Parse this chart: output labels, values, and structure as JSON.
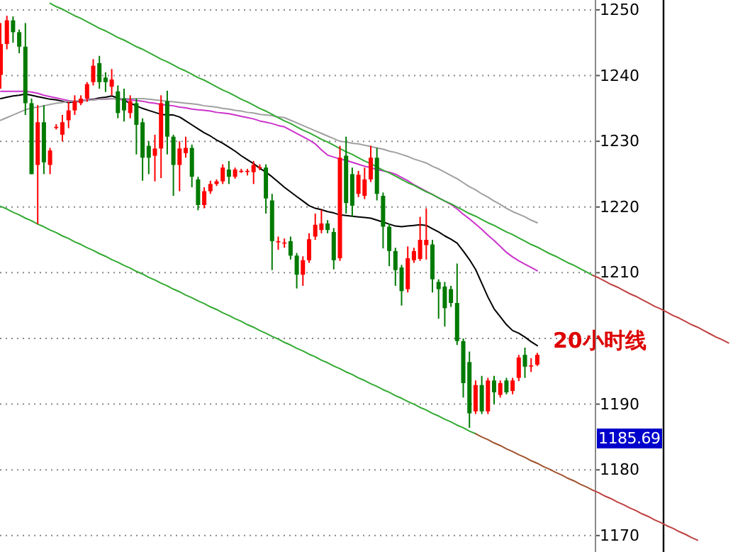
{
  "chart_data": {
    "type": "candlestick",
    "categories": [
      null,
      null,
      null,
      null,
      null,
      null,
      null,
      null,
      null,
      null,
      null,
      null,
      null,
      null,
      null,
      null,
      null,
      null,
      null,
      null,
      null,
      null,
      null,
      null,
      null,
      null,
      null,
      null,
      null,
      null,
      null,
      null,
      null,
      null,
      null,
      null,
      null,
      null,
      null,
      null,
      null,
      null,
      null,
      null,
      null,
      null,
      null,
      null,
      null,
      null,
      null,
      null,
      null,
      null,
      null,
      null,
      null,
      null,
      null,
      null,
      null,
      null,
      null,
      null,
      null,
      null,
      null,
      null,
      null,
      null,
      null,
      null,
      null,
      null,
      null,
      null,
      null,
      null,
      null,
      null,
      null,
      null,
      null,
      null,
      null,
      null,
      null,
      null,
      null,
      null,
      null,
      null,
      null,
      null,
      null,
      null,
      null,
      null,
      null,
      null,
      null,
      null,
      null,
      null,
      null,
      null,
      null,
      null,
      null,
      null,
      null,
      null,
      null,
      null,
      null,
      null,
      null,
      null,
      null
    ],
    "ohlc": [
      [
        1240.1,
        1248,
        1238,
        1244.8
      ],
      [
        1244.8,
        1249.1,
        1244,
        1248.4
      ],
      [
        1248.4,
        1249,
        1245,
        1246.6
      ],
      [
        1246.6,
        1247,
        1243.4,
        1244.4
      ],
      [
        1244.4,
        1248,
        1234,
        1235.8
      ],
      [
        1235.8,
        1236.5,
        1225,
        1225
      ],
      [
        1226.4,
        1235.5,
        1217.4,
        1232.9
      ],
      [
        1232.9,
        1235.5,
        1225,
        1226.8
      ],
      [
        1226.4,
        1229,
        1225,
        1228.6
      ],
      [
        1232.2,
        1232.6,
        1231.8,
        1232.2
      ],
      [
        1231,
        1234,
        1230,
        1232.9
      ],
      [
        1233.2,
        1236,
        1232,
        1234.7
      ],
      [
        1234.7,
        1237,
        1234,
        1236.1
      ],
      [
        1235.8,
        1237,
        1235.5,
        1236.5
      ],
      [
        1236.5,
        1239,
        1236,
        1238.7
      ],
      [
        1239,
        1242.5,
        1238.5,
        1241.5
      ],
      [
        1241.9,
        1243,
        1238,
        1239
      ],
      [
        1239.7,
        1240.5,
        1237.5,
        1239
      ],
      [
        1238.3,
        1241,
        1237,
        1239.4
      ],
      [
        1237.6,
        1238.5,
        1233.5,
        1234.3
      ],
      [
        1236.5,
        1238,
        1233,
        1234.7
      ],
      [
        1234.3,
        1237,
        1233.5,
        1236.1
      ],
      [
        1235.8,
        1236.5,
        1228,
        1232.5
      ],
      [
        1232.9,
        1233.5,
        1224,
        1227.5
      ],
      [
        1229.3,
        1230,
        1225,
        1227.5
      ],
      [
        1227.8,
        1231,
        1223.9,
        1228.9
      ],
      [
        1228.9,
        1237,
        1224.4,
        1235.8
      ],
      [
        1236.1,
        1237.7,
        1228,
        1230.7
      ],
      [
        1230.7,
        1231,
        1221.7,
        1226.4
      ],
      [
        1226.4,
        1230,
        1222.4,
        1228.9
      ],
      [
        1228.2,
        1230.7,
        1227.5,
        1229
      ],
      [
        1229,
        1229.5,
        1223,
        1224.6
      ],
      [
        1224.2,
        1224.6,
        1219.5,
        1220.3
      ],
      [
        1220.3,
        1223,
        1219.8,
        1222.4
      ],
      [
        1222.4,
        1224,
        1222,
        1223.5
      ],
      [
        1223.5,
        1224.2,
        1223.2,
        1223.9
      ],
      [
        1223.9,
        1226.5,
        1223.5,
        1226
      ],
      [
        1225.7,
        1227,
        1223.5,
        1224.6
      ],
      [
        1224.6,
        1226,
        1224.3,
        1225.7
      ],
      [
        1225.5,
        1225.8,
        1225.2,
        1225.5
      ],
      [
        1225.5,
        1225.8,
        1224.8,
        1225.5
      ],
      [
        1225.3,
        1227,
        1223.5,
        1226.4
      ],
      [
        1226,
        1226.5,
        1225.6,
        1226.1
      ],
      [
        1226,
        1226.5,
        1219,
        1221.3
      ],
      [
        1221,
        1222,
        1210.4,
        1214.8
      ],
      [
        1214.8,
        1215.5,
        1213.5,
        1214.8
      ],
      [
        1214.6,
        1215.2,
        1213.8,
        1214.6
      ],
      [
        1214.8,
        1215.5,
        1212,
        1212.6
      ],
      [
        1212.6,
        1213,
        1207.6,
        1209.7
      ],
      [
        1209.7,
        1212.5,
        1208,
        1211.9
      ],
      [
        1211.9,
        1216,
        1211.5,
        1215.1
      ],
      [
        1215.5,
        1219,
        1215,
        1217.3
      ],
      [
        1216.5,
        1219.6,
        1216,
        1217.5
      ],
      [
        1217.5,
        1218,
        1216,
        1216.5
      ],
      [
        1216.2,
        1216.8,
        1210.5,
        1211.9
      ],
      [
        1212.2,
        1229.3,
        1211.8,
        1227.5
      ],
      [
        1227.8,
        1230.7,
        1219,
        1220.6
      ],
      [
        1225,
        1226,
        1218.5,
        1220.2
      ],
      [
        1222,
        1225.5,
        1221.5,
        1224.9
      ],
      [
        1221.7,
        1226,
        1221.2,
        1224.2
      ],
      [
        1224.2,
        1229.3,
        1223.8,
        1227.5
      ],
      [
        1227.5,
        1229,
        1221,
        1222
      ],
      [
        1221.7,
        1222.2,
        1213.7,
        1217
      ],
      [
        1217,
        1217.5,
        1211,
        1213.3
      ],
      [
        1213.3,
        1213.8,
        1208,
        1210.4
      ],
      [
        1210.8,
        1211.2,
        1205,
        1207.2
      ],
      [
        1207.5,
        1214,
        1207,
        1212.2
      ],
      [
        1211.9,
        1213.8,
        1211.5,
        1213.3
      ],
      [
        1212.1,
        1218.5,
        1211.8,
        1215
      ],
      [
        1214.2,
        1219.8,
        1212,
        1215
      ],
      [
        1214.3,
        1215,
        1207,
        1209
      ],
      [
        1208.6,
        1209,
        1203,
        1207.5
      ],
      [
        1207.9,
        1208.6,
        1201.8,
        1204.6
      ],
      [
        1207.5,
        1208,
        1204.8,
        1205.4
      ],
      [
        1205.4,
        1211.4,
        1199,
        1199.6
      ],
      [
        1199.6,
        1200,
        1191,
        1193.2
      ],
      [
        1196.4,
        1198,
        1186.4,
        1188.6
      ],
      [
        1188.9,
        1193.6,
        1188.5,
        1192.9
      ],
      [
        1192.9,
        1194.3,
        1188.5,
        1188.9
      ],
      [
        1188.9,
        1194,
        1188.5,
        1193.6
      ],
      [
        1193.6,
        1194.3,
        1190,
        1191.8
      ],
      [
        1191.4,
        1193.6,
        1191,
        1193.2
      ],
      [
        1193.6,
        1194,
        1191.5,
        1191.8
      ],
      [
        1192,
        1194,
        1191.5,
        1193.6
      ],
      [
        1194,
        1197.5,
        1193.5,
        1197.1
      ],
      [
        1197.5,
        1198.6,
        1194,
        1195.7
      ],
      [
        1195.9,
        1197,
        1194.9,
        1195.9
      ],
      [
        1196,
        1197.8,
        1195.8,
        1197.5
      ],
      null,
      null,
      null,
      null,
      null,
      null,
      null,
      null,
      null,
      null,
      null,
      null,
      null,
      null,
      null,
      null,
      null,
      null,
      null,
      null,
      null,
      null,
      null,
      null,
      null,
      null,
      null,
      null,
      null,
      null,
      null
    ],
    "ylim": [
      1167.5,
      1251.5
    ],
    "yticks": [
      1170,
      1180,
      1190,
      {
        "value": 1200,
        "label": null
      },
      1210,
      1220,
      1230,
      1240,
      1250
    ],
    "grid": "y",
    "tick_labels": "y",
    "series": [
      {
        "type": "line",
        "color": "#000000",
        "values": [
          1236.5,
          1236.7,
          1236.9,
          1237.0,
          1237.2,
          1237.0,
          1236.8,
          1236.6,
          1236.4,
          1236.3,
          1236.1,
          1235.9,
          1236.0,
          1236.1,
          1236.3,
          1236.4,
          1236.6,
          1236.7,
          1236.9,
          1236.6,
          1236.2,
          1235.8,
          1235.4,
          1235.0,
          1234.7,
          1234.4,
          1234.1,
          1234.0,
          1234.0,
          1233.7,
          1233.1,
          1232.5,
          1231.9,
          1231.3,
          1230.8,
          1230.2,
          1229.7,
          1229.1,
          1228.5,
          1227.8,
          1227.2,
          1226.6,
          1225.9,
          1225.3,
          1224.6,
          1223.8,
          1223.0,
          1222.3,
          1221.6,
          1220.9,
          1220.2,
          1219.8,
          1219.6,
          1219.3,
          1219.1,
          1218.8,
          1218.7,
          1218.6,
          1218.5,
          1218.4,
          1218.3,
          1218.0,
          1217.7,
          1217.4,
          1217.1,
          1217.0,
          1217.1,
          1217.2,
          1217.3,
          1217.2,
          1216.7,
          1216.2,
          1215.6,
          1215.1,
          1214.5,
          1213.3,
          1212.0,
          1210.5,
          1208.4,
          1206.3,
          1204.5,
          1203.3,
          1202.1,
          1201.2,
          1200.8,
          1200.2,
          1199.5,
          1198.9,
          null,
          null,
          null,
          null,
          null,
          null,
          null,
          null,
          null,
          null,
          null,
          null,
          null,
          null,
          null,
          null,
          null,
          null,
          null,
          null,
          null,
          null,
          null,
          null,
          null,
          null,
          null,
          null,
          null,
          null,
          null
        ]
      },
      {
        "type": "line",
        "color": "#cc33cc",
        "values": [
          1237.6,
          1237.6,
          1237.6,
          1237.6,
          1237.6,
          1237.5,
          1237.3,
          1237.0,
          1236.8,
          1236.6,
          1236.4,
          1236.2,
          1236.1,
          1236.2,
          1236.3,
          1236.3,
          1236.4,
          1236.4,
          1236.5,
          1236.4,
          1236.3,
          1236.3,
          1236.2,
          1236.1,
          1235.9,
          1235.8,
          1235.6,
          1235.5,
          1235.4,
          1235.2,
          1235.1,
          1234.9,
          1234.8,
          1234.7,
          1234.6,
          1234.4,
          1234.3,
          1234.2,
          1234.0,
          1233.8,
          1233.6,
          1233.4,
          1233.1,
          1232.9,
          1232.7,
          1232.4,
          1232.2,
          1231.7,
          1231.2,
          1230.7,
          1230.2,
          1229.6,
          1228.7,
          1227.9,
          1227.6,
          1227.3,
          1227.1,
          1226.8,
          1226.5,
          1226.2,
          1226.0,
          1225.7,
          1225.5,
          1225.3,
          1225.0,
          1224.5,
          1224.0,
          1223.4,
          1222.9,
          1222.4,
          1221.9,
          1221.4,
          1220.9,
          1220.4,
          1219.7,
          1218.9,
          1218.2,
          1217.4,
          1216.6,
          1215.7,
          1214.9,
          1214.0,
          1213.1,
          1212.4,
          1211.8,
          1211.3,
          1210.8,
          1210.3,
          null,
          null,
          null,
          null,
          null,
          null,
          null,
          null,
          null,
          null,
          null,
          null,
          null,
          null,
          null,
          null,
          null,
          null,
          null,
          null,
          null,
          null,
          null,
          null,
          null,
          null,
          null,
          null,
          null,
          null,
          null
        ]
      },
      {
        "type": "line",
        "color": "#a0a0a0",
        "values": [
          1233.2,
          1233.6,
          1234.0,
          1234.4,
          1234.8,
          1235.1,
          1235.2,
          1235.4,
          1235.6,
          1235.8,
          1235.9,
          1236.1,
          1236.1,
          1236.2,
          1236.2,
          1236.3,
          1236.4,
          1236.4,
          1236.5,
          1236.5,
          1236.5,
          1236.5,
          1236.5,
          1236.5,
          1236.4,
          1236.3,
          1236.2,
          1236.1,
          1236.0,
          1235.9,
          1235.8,
          1235.7,
          1235.6,
          1235.4,
          1235.3,
          1235.2,
          1235.0,
          1234.9,
          1234.7,
          1234.6,
          1234.4,
          1234.3,
          1234.1,
          1234.0,
          1233.9,
          1233.7,
          1233.6,
          1233.2,
          1232.8,
          1232.4,
          1232.0,
          1231.6,
          1231.2,
          1230.8,
          1230.4,
          1230.0,
          1229.9,
          1229.7,
          1229.6,
          1229.4,
          1229.2,
          1229.0,
          1228.8,
          1228.5,
          1228.3,
          1228.0,
          1227.7,
          1227.3,
          1227.0,
          1226.7,
          1226.2,
          1225.8,
          1225.3,
          1224.8,
          1224.3,
          1223.7,
          1223.1,
          1222.6,
          1222.0,
          1221.5,
          1220.9,
          1220.4,
          1219.8,
          1219.3,
          1218.9,
          1218.5,
          1218.0,
          1217.6,
          null,
          null,
          null,
          null,
          null,
          null,
          null,
          null,
          null,
          null,
          null,
          null,
          null,
          null,
          null,
          null,
          null,
          null,
          null,
          null,
          null,
          null,
          null,
          null,
          null,
          null,
          null,
          null,
          null,
          null,
          null
        ]
      },
      {
        "type": "line",
        "color": "#33aa33",
        "values": [
          null,
          null,
          null,
          null,
          null,
          null,
          null,
          null,
          1251.0,
          1250.5,
          1250.1,
          1249.6,
          1249.1,
          1248.7,
          1248.2,
          1247.7,
          1247.2,
          1246.8,
          1246.3,
          1245.8,
          1245.4,
          1244.9,
          1244.4,
          1244.0,
          1243.5,
          1243.0,
          1242.5,
          1242.1,
          1241.6,
          1241.1,
          1240.7,
          1240.2,
          1239.7,
          1239.3,
          1238.8,
          1238.3,
          1237.8,
          1237.4,
          1236.9,
          1236.4,
          1236.0,
          1235.5,
          1235.0,
          1234.6,
          1234.1,
          1233.6,
          1233.1,
          1232.7,
          1232.2,
          1231.7,
          1231.3,
          1230.8,
          1230.3,
          1229.9,
          1229.4,
          1228.9,
          1228.4,
          1228.0,
          1227.5,
          1227.0,
          1226.6,
          1226.1,
          1225.6,
          1225.2,
          1224.7,
          1224.2,
          1223.7,
          1223.3,
          1222.8,
          1222.3,
          1221.9,
          1221.4,
          1220.9,
          1220.5,
          1220.0,
          1219.5,
          1219.0,
          1218.6,
          1218.1,
          1217.6,
          1217.2,
          1216.7,
          1216.2,
          1215.8,
          1215.3,
          1214.8,
          1214.3,
          1213.9,
          1213.4,
          1212.9,
          1212.5,
          1212.0,
          1211.5,
          1211.1,
          1210.6,
          1210.1,
          1209.6,
          null,
          null,
          null,
          null,
          null,
          null,
          null,
          null,
          null,
          null,
          null,
          null,
          null,
          null,
          null,
          null,
          null,
          null,
          null,
          null,
          null,
          null
        ]
      },
      {
        "type": "line",
        "color": "#c04040",
        "values": [
          null,
          null,
          null,
          null,
          null,
          null,
          null,
          null,
          null,
          null,
          null,
          null,
          null,
          null,
          null,
          null,
          null,
          null,
          null,
          null,
          null,
          null,
          null,
          null,
          null,
          null,
          null,
          null,
          null,
          null,
          null,
          null,
          null,
          null,
          null,
          null,
          null,
          null,
          null,
          null,
          null,
          null,
          null,
          null,
          null,
          null,
          null,
          null,
          null,
          null,
          null,
          null,
          null,
          null,
          null,
          null,
          null,
          null,
          null,
          null,
          null,
          null,
          null,
          null,
          null,
          null,
          null,
          null,
          null,
          null,
          null,
          null,
          null,
          null,
          null,
          null,
          null,
          null,
          null,
          null,
          null,
          null,
          null,
          null,
          null,
          null,
          null,
          null,
          null,
          null,
          null,
          null,
          null,
          null,
          null,
          null,
          1209.6,
          1209.2,
          1208.7,
          1208.2,
          1207.8,
          1207.3,
          1206.8,
          1206.4,
          1205.9,
          1205.4,
          1204.9,
          1204.5,
          1204.0,
          1203.5,
          1203.1,
          1202.6,
          1202.1,
          1201.7,
          1201.2,
          1200.7,
          1200.2,
          1199.8,
          1199.3
        ]
      },
      {
        "type": "line",
        "color": "#33aa33",
        "values": [
          1220.1,
          1219.7,
          1219.2,
          1218.8,
          1218.3,
          1217.9,
          1217.4,
          1217.0,
          1216.5,
          1216.1,
          1215.6,
          1215.2,
          1214.7,
          1214.3,
          1213.8,
          1213.4,
          1212.9,
          1212.5,
          1212.0,
          1211.6,
          1211.1,
          1210.7,
          1210.2,
          1209.8,
          1209.3,
          1208.9,
          1208.4,
          1208.0,
          1207.5,
          1207.1,
          1206.6,
          1206.2,
          1205.7,
          1205.3,
          1204.8,
          1204.4,
          1203.9,
          1203.5,
          1203.0,
          1202.6,
          1202.1,
          1201.7,
          1201.2,
          1200.8,
          1200.3,
          1199.9,
          1199.4,
          1199.0,
          1198.5,
          1198.1,
          1197.6,
          1197.2,
          1196.7,
          1196.3,
          1195.8,
          1195.4,
          1194.9,
          1194.5,
          1194.0,
          1193.6,
          1193.1,
          1192.7,
          1192.2,
          1191.8,
          1191.3,
          1190.9,
          1190.4,
          1190.0,
          1189.5,
          1189.1,
          1188.6,
          1188.2,
          1187.7,
          1187.3,
          1186.8,
          1186.4,
          1185.9,
          1185.5,
          null,
          null,
          null,
          null,
          null,
          null,
          null,
          null,
          null,
          null,
          null,
          null,
          null,
          null,
          null,
          null,
          null,
          null,
          null,
          null,
          null,
          null,
          null,
          null,
          null,
          null,
          null,
          null,
          null,
          null,
          null,
          null,
          null,
          null,
          null,
          null,
          null,
          null,
          null,
          null,
          null
        ]
      },
      {
        "type": "line",
        "color": "#a0522d",
        "values": [
          null,
          null,
          null,
          null,
          null,
          null,
          null,
          null,
          null,
          null,
          null,
          null,
          null,
          null,
          null,
          null,
          null,
          null,
          null,
          null,
          null,
          null,
          null,
          null,
          null,
          null,
          null,
          null,
          null,
          null,
          null,
          null,
          null,
          null,
          null,
          null,
          null,
          null,
          null,
          null,
          null,
          null,
          null,
          null,
          null,
          null,
          null,
          null,
          null,
          null,
          null,
          null,
          null,
          null,
          null,
          null,
          null,
          null,
          null,
          null,
          null,
          null,
          null,
          null,
          null,
          null,
          null,
          null,
          null,
          null,
          null,
          null,
          null,
          null,
          null,
          null,
          null,
          1185.5,
          1185.0,
          1184.6,
          1184.1,
          1183.7,
          1183.2,
          1182.8,
          1182.3,
          1181.9,
          1181.4,
          1181.0,
          1180.5,
          1180.1,
          1179.6,
          1179.2,
          1178.7,
          1178.3,
          1177.8,
          1177.4,
          1176.9,
          null,
          null,
          null,
          null,
          null,
          null,
          null,
          null,
          null,
          null,
          null,
          null,
          null,
          null,
          null,
          null,
          null,
          null,
          null,
          null,
          null,
          null
        ]
      },
      {
        "type": "line",
        "color": "#c04040",
        "values": [
          null,
          null,
          null,
          null,
          null,
          null,
          null,
          null,
          null,
          null,
          null,
          null,
          null,
          null,
          null,
          null,
          null,
          null,
          null,
          null,
          null,
          null,
          null,
          null,
          null,
          null,
          null,
          null,
          null,
          null,
          null,
          null,
          null,
          null,
          null,
          null,
          null,
          null,
          null,
          null,
          null,
          null,
          null,
          null,
          null,
          null,
          null,
          null,
          null,
          null,
          null,
          null,
          null,
          null,
          null,
          null,
          null,
          null,
          null,
          null,
          null,
          null,
          null,
          null,
          null,
          null,
          null,
          null,
          null,
          null,
          null,
          null,
          null,
          null,
          null,
          null,
          null,
          null,
          null,
          null,
          null,
          null,
          null,
          null,
          null,
          null,
          null,
          null,
          null,
          null,
          null,
          null,
          null,
          null,
          null,
          null,
          1176.9,
          1176.5,
          1176.0,
          1175.6,
          1175.1,
          1174.7,
          1174.2,
          1173.8,
          1173.3,
          1172.9,
          1172.4,
          1172.0,
          1171.5,
          1171.1,
          1170.6,
          1170.2,
          1169.7,
          1169.3,
          null,
          null,
          null,
          null,
          null
        ]
      }
    ],
    "annotations": [
      "20小时线",
      "1185.69"
    ]
  }
}
